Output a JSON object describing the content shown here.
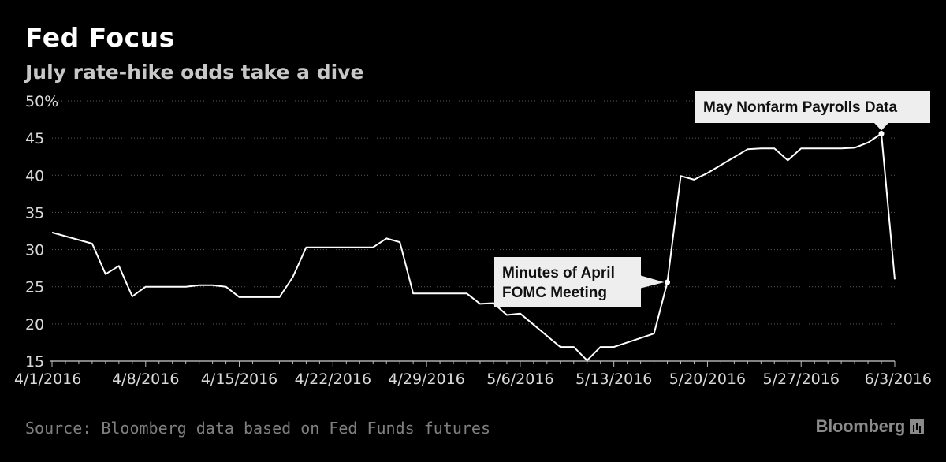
{
  "chart_data": {
    "type": "line",
    "title": "Fed Focus",
    "subtitle": "July rate-hike odds take a dive",
    "xlabel": "",
    "ylabel": "",
    "ylim": [
      15,
      50
    ],
    "xlim": [
      "2016-04-01",
      "2016-06-03"
    ],
    "y_ticks": [
      "50%",
      "45",
      "40",
      "35",
      "30",
      "25",
      "20",
      "15"
    ],
    "y_tick_values": [
      50,
      45,
      40,
      35,
      30,
      25,
      20,
      15
    ],
    "x_ticks": [
      "4/1/2016",
      "4/8/2016",
      "4/15/2016",
      "4/22/2016",
      "4/29/2016",
      "5/6/2016",
      "5/13/2016",
      "5/20/2016",
      "5/27/2016",
      "6/3/2016"
    ],
    "x_tick_dates": [
      "2016-04-01",
      "2016-04-08",
      "2016-04-15",
      "2016-04-22",
      "2016-04-29",
      "2016-05-06",
      "2016-05-13",
      "2016-05-20",
      "2016-05-27",
      "2016-06-03"
    ],
    "grid": true,
    "line_color": "#ffffff",
    "series": [
      {
        "x": [
          "2016-04-01",
          "2016-04-04",
          "2016-04-05",
          "2016-04-06",
          "2016-04-07",
          "2016-04-08",
          "2016-04-11",
          "2016-04-12",
          "2016-04-13",
          "2016-04-14",
          "2016-04-15",
          "2016-04-18",
          "2016-04-19",
          "2016-04-20",
          "2016-04-21",
          "2016-04-22",
          "2016-04-25",
          "2016-04-26",
          "2016-04-27",
          "2016-04-28",
          "2016-04-29",
          "2016-05-02",
          "2016-05-03",
          "2016-05-04",
          "2016-05-05",
          "2016-05-06",
          "2016-05-09",
          "2016-05-10",
          "2016-05-11",
          "2016-05-12",
          "2016-05-13",
          "2016-05-16",
          "2016-05-17",
          "2016-05-18",
          "2016-05-19",
          "2016-05-20",
          "2016-05-23",
          "2016-05-24",
          "2016-05-25",
          "2016-05-26",
          "2016-05-27",
          "2016-05-30",
          "2016-05-31",
          "2016-06-01",
          "2016-06-02",
          "2016-06-03"
        ],
        "values": [
          32.3,
          30.8,
          26.7,
          27.8,
          23.7,
          25.0,
          25.0,
          25.2,
          25.2,
          25.0,
          23.6,
          23.6,
          26.3,
          30.3,
          30.3,
          30.3,
          30.3,
          31.5,
          31.0,
          24.1,
          24.1,
          24.1,
          22.7,
          22.8,
          21.2,
          21.4,
          16.9,
          16.9,
          15.1,
          16.9,
          16.9,
          18.7,
          25.6,
          39.9,
          39.4,
          40.3,
          43.5,
          43.6,
          43.6,
          42.0,
          43.6,
          43.6,
          43.7,
          44.4,
          45.6,
          26.0
        ]
      }
    ],
    "annotations": [
      {
        "lines": [
          "Minutes of April",
          "FOMC Meeting"
        ],
        "x": "2016-05-17",
        "y": 25.6
      },
      {
        "lines": [
          "May Nonfarm Payrolls Data"
        ],
        "x": "2016-06-02",
        "y": 45.6
      }
    ]
  },
  "source": "Source: Bloomberg data based on Fed Funds futures",
  "logo": "Bloomberg"
}
